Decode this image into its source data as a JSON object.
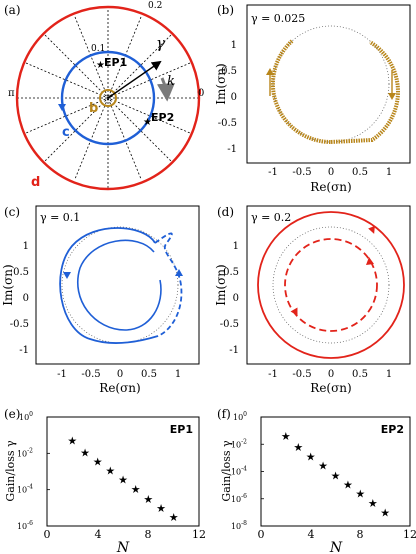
{
  "colors": {
    "red": "#e2231a",
    "blue": "#1f5fd6",
    "gold": "#b8861b",
    "gray": "#7a7a7a",
    "black": "#000000"
  },
  "panels": {
    "a": {
      "label": "(a)",
      "radial_ticks": [
        "0.2",
        "0.1"
      ],
      "angle_ticks": [
        "π",
        "0"
      ],
      "gamma_label": "γ",
      "k_label": "k",
      "curve_labels": [
        "b",
        "c",
        "d"
      ],
      "ep_labels": [
        "EP1",
        "EP2"
      ]
    },
    "b": {
      "label": "(b)",
      "gamma_text": "γ = 0.025"
    },
    "c": {
      "label": "(c)",
      "gamma_text": "γ = 0.1"
    },
    "d": {
      "label": "(d)",
      "gamma_text": "γ = 0.2"
    },
    "e": {
      "label": "(e)",
      "tag": "EP1"
    },
    "f": {
      "label": "(f)",
      "tag": "EP2"
    }
  },
  "axes": {
    "complex_xlabel": "Re(σn)",
    "complex_ylabel": "Im(σn)",
    "complex_xticks": [
      "-1",
      "-0.5",
      "0",
      "0.5",
      "1"
    ],
    "complex_yticks": [
      "1",
      "0.5",
      "0",
      "-0.5",
      "-1"
    ],
    "scaling_xlabel": "N",
    "scaling_ylabel": "Gain/loss γ",
    "scaling_xticks": [
      "0",
      "4",
      "8",
      "12"
    ]
  },
  "chart_data": [
    {
      "panel": "e",
      "type": "scatter",
      "xlabel": "N",
      "ylabel": "Gain/loss γ",
      "y_scale": "log",
      "xlim": [
        0,
        12
      ],
      "ylim_exponents": [
        -6,
        0
      ],
      "ytick_exponents": [
        0,
        -2,
        -4,
        -6
      ],
      "x": [
        2,
        3,
        4,
        5,
        6,
        7,
        8,
        9,
        10
      ],
      "y_log10": [
        -1.3,
        -1.95,
        -2.45,
        -2.95,
        -3.45,
        -3.95,
        -4.5,
        -5.0,
        -5.5
      ]
    },
    {
      "panel": "f",
      "type": "scatter",
      "xlabel": "N",
      "ylabel": "Gain/loss γ",
      "y_scale": "log",
      "xlim": [
        0,
        12
      ],
      "ylim_exponents": [
        -8,
        0
      ],
      "ytick_exponents": [
        0,
        -2,
        -4,
        -6,
        -8
      ],
      "x": [
        2,
        3,
        4,
        5,
        6,
        7,
        8,
        9,
        10
      ],
      "y_log10": [
        -1.4,
        -2.2,
        -2.9,
        -3.55,
        -4.3,
        -4.95,
        -5.6,
        -6.3,
        -7.0
      ]
    }
  ]
}
